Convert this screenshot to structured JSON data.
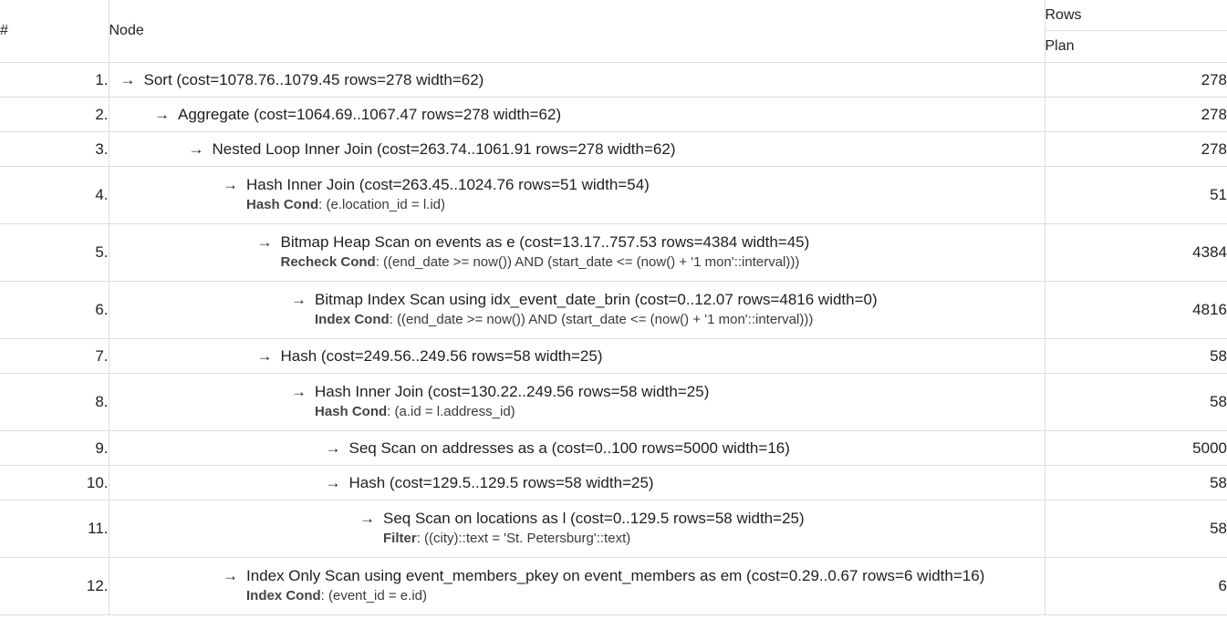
{
  "header": {
    "num": "#",
    "node": "Node",
    "rows": "Rows",
    "plan": "Plan"
  },
  "arrow": "→",
  "rows": [
    {
      "num": "1.",
      "depth": 0,
      "node": "Sort (cost=1078.76..1079.45 rows=278 width=62)",
      "cond_key": "",
      "cond_value": "",
      "rows": "278"
    },
    {
      "num": "2.",
      "depth": 1,
      "node": "Aggregate (cost=1064.69..1067.47 rows=278 width=62)",
      "cond_key": "",
      "cond_value": "",
      "rows": "278"
    },
    {
      "num": "3.",
      "depth": 2,
      "node": "Nested Loop Inner Join (cost=263.74..1061.91 rows=278 width=62)",
      "cond_key": "",
      "cond_value": "",
      "rows": "278"
    },
    {
      "num": "4.",
      "depth": 3,
      "node": "Hash Inner Join (cost=263.45..1024.76 rows=51 width=54)",
      "cond_key": "Hash Cond",
      "cond_value": ": (e.location_id = l.id)",
      "rows": "51"
    },
    {
      "num": "5.",
      "depth": 4,
      "node": "Bitmap Heap Scan on events as e (cost=13.17..757.53 rows=4384 width=45)",
      "cond_key": "Recheck Cond",
      "cond_value": ": ((end_date >= now()) AND (start_date <= (now() + '1 mon'::interval)))",
      "rows": "4384"
    },
    {
      "num": "6.",
      "depth": 5,
      "node": "Bitmap Index Scan using idx_event_date_brin (cost=0..12.07 rows=4816 width=0)",
      "cond_key": "Index Cond",
      "cond_value": ": ((end_date >= now()) AND (start_date <= (now() + '1 mon'::interval)))",
      "rows": "4816"
    },
    {
      "num": "7.",
      "depth": 4,
      "node": "Hash (cost=249.56..249.56 rows=58 width=25)",
      "cond_key": "",
      "cond_value": "",
      "rows": "58"
    },
    {
      "num": "8.",
      "depth": 5,
      "node": "Hash Inner Join (cost=130.22..249.56 rows=58 width=25)",
      "cond_key": "Hash Cond",
      "cond_value": ": (a.id = l.address_id)",
      "rows": "58"
    },
    {
      "num": "9.",
      "depth": 6,
      "node": "Seq Scan on addresses as a (cost=0..100 rows=5000 width=16)",
      "cond_key": "",
      "cond_value": "",
      "rows": "5000"
    },
    {
      "num": "10.",
      "depth": 6,
      "node": "Hash (cost=129.5..129.5 rows=58 width=25)",
      "cond_key": "",
      "cond_value": "",
      "rows": "58"
    },
    {
      "num": "11.",
      "depth": 7,
      "node": "Seq Scan on locations as l (cost=0..129.5 rows=58 width=25)",
      "cond_key": "Filter",
      "cond_value": ": ((city)::text = 'St. Petersburg'::text)",
      "rows": "58"
    },
    {
      "num": "12.",
      "depth": 3,
      "node": "Index Only Scan using event_members_pkey on event_members as em (cost=0.29..0.67 rows=6 width=16)",
      "cond_key": "Index Cond",
      "cond_value": ": (event_id = e.id)",
      "rows": "6"
    }
  ]
}
